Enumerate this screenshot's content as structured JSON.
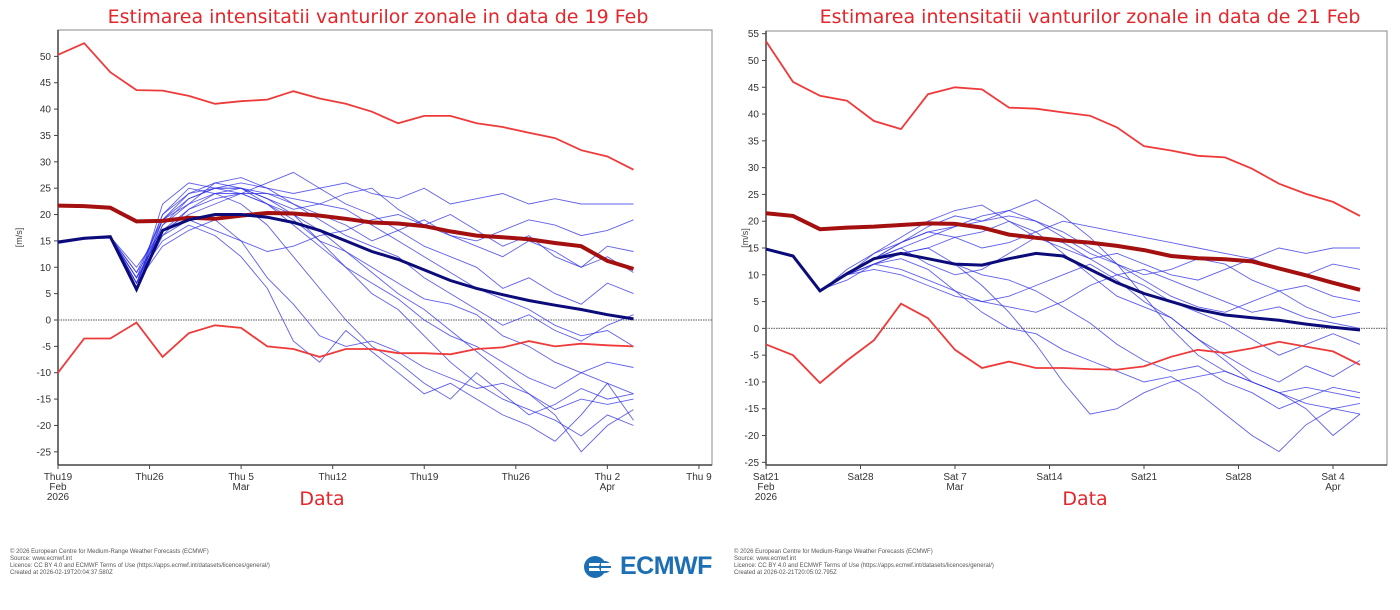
{
  "chart_data": [
    {
      "type": "line",
      "title": "Estimarea intensitatii vanturilor zonale in data de 19 Feb",
      "xlabel": "Data",
      "ylabel": "[m/s]",
      "ylim": [
        -27.5,
        55
      ],
      "xlim": [
        "2026-02-19",
        "2026-04-10"
      ],
      "yticks": [
        -25,
        -20,
        -15,
        -10,
        -5,
        0,
        5,
        10,
        15,
        20,
        25,
        30,
        35,
        40,
        45,
        50
      ],
      "xticks": [
        {
          "date": "2026-02-19",
          "label": [
            "Thu19",
            "Feb",
            "2026"
          ]
        },
        {
          "date": "2026-02-26",
          "label": [
            "Thu26"
          ]
        },
        {
          "date": "2026-03-05",
          "label": [
            "Thu 5",
            "Mar"
          ]
        },
        {
          "date": "2026-03-12",
          "label": [
            "Thu12"
          ]
        },
        {
          "date": "2026-03-19",
          "label": [
            "Thu19"
          ]
        },
        {
          "date": "2026-03-26",
          "label": [
            "Thu26"
          ]
        },
        {
          "date": "2026-04-02",
          "label": [
            "Thu 2",
            "Apr"
          ]
        },
        {
          "date": "2026-04-09",
          "label": [
            "Thu 9"
          ]
        }
      ],
      "zero_line": true,
      "dates": [
        "2026-02-19",
        "2026-02-21",
        "2026-02-23",
        "2026-02-25",
        "2026-02-27",
        "2026-03-01",
        "2026-03-03",
        "2026-03-05",
        "2026-03-07",
        "2026-03-09",
        "2026-03-11",
        "2026-03-13",
        "2026-03-15",
        "2026-03-17",
        "2026-03-19",
        "2026-03-21",
        "2026-03-23",
        "2026-03-25",
        "2026-03-27",
        "2026-03-29",
        "2026-03-31",
        "2026-04-02",
        "2026-04-04"
      ],
      "colors": {
        "members": "#2b2be6",
        "mean": "#0b0b7a",
        "climate_mean": "#a3100f",
        "extremes": "#ef3a3a",
        "zero": "#777777"
      },
      "climate_max": [
        50.3,
        52.5,
        47,
        43.6,
        43.5,
        42.5,
        41,
        41.5,
        41.8,
        43.4,
        42,
        41,
        39.5,
        37.3,
        38.7,
        38.7,
        37.3,
        36.6,
        35.5,
        34.5,
        32.2,
        31,
        28.5
      ],
      "climate_min": [
        -10,
        -3.5,
        -3.5,
        -0.5,
        -7,
        -2.5,
        -1,
        -1.5,
        -5,
        -5.5,
        -7,
        -5.5,
        -5.5,
        -6.3,
        -6.3,
        -6.5,
        -5.5,
        -5.2,
        -4,
        -5,
        -4.5,
        -4.8,
        -5
      ],
      "climate_mean": [
        21.7,
        21.6,
        21.3,
        18.7,
        18.8,
        19.4,
        19.2,
        19.8,
        20.3,
        20.2,
        19.8,
        19.2,
        18.5,
        18.3,
        17.8,
        16.8,
        16,
        15.7,
        15.3,
        14.6,
        14,
        11.2,
        9.7
      ],
      "ensemble_mean": [
        14.8,
        15.5,
        15.8,
        5.8,
        17,
        19,
        20,
        20,
        19.5,
        18.5,
        17,
        15,
        13,
        11.5,
        9.5,
        7.5,
        6,
        4.8,
        3.7,
        2.8,
        2,
        1,
        0.2
      ],
      "members": [
        [
          14.8,
          15.5,
          15.8,
          7,
          18,
          23,
          25,
          26,
          25,
          24,
          25,
          26,
          24,
          23,
          25,
          22,
          23,
          24,
          22,
          23,
          22,
          22,
          22
        ],
        [
          14.8,
          15.5,
          15.8,
          6,
          16,
          21,
          24,
          25,
          23,
          20,
          15,
          10,
          5,
          2,
          -3,
          -8,
          -12,
          -15,
          -17,
          -19,
          -22,
          -18,
          -20
        ],
        [
          14.8,
          15.5,
          15.5,
          8,
          20,
          25,
          24,
          22,
          18,
          12,
          6,
          0,
          -5,
          -8,
          -12,
          -15,
          -10,
          -14,
          -18,
          -16,
          -13,
          -15,
          -14
        ],
        [
          14.5,
          15.3,
          15.6,
          9,
          19,
          22,
          26,
          27,
          25,
          22,
          20,
          18,
          15,
          17,
          14,
          12,
          10,
          6,
          8,
          5,
          3,
          7,
          5
        ],
        [
          14.8,
          15.4,
          15.7,
          7,
          14,
          17,
          19,
          15,
          8,
          3,
          -3,
          -5,
          -4,
          -6,
          -9,
          -11,
          -13,
          -12,
          -14,
          -17,
          -15,
          -16,
          -15
        ],
        [
          14.8,
          15.5,
          15.8,
          10,
          17,
          20,
          22,
          24,
          26,
          28,
          25,
          22,
          20,
          17,
          19,
          16,
          14,
          12,
          15,
          13,
          10,
          12,
          9
        ],
        [
          14.8,
          15.6,
          15.9,
          6,
          22,
          26,
          25,
          24,
          22,
          19,
          15,
          13,
          9,
          5,
          2,
          -2,
          -6,
          -10,
          -14,
          -18,
          -25,
          -20,
          -17
        ],
        [
          14.7,
          15.4,
          15.7,
          8,
          15,
          18,
          16,
          12,
          6,
          -4,
          -8,
          -2,
          -6,
          -10,
          -14,
          -12,
          -15,
          -18,
          -20,
          -23,
          -18,
          -12,
          -19
        ],
        [
          14.8,
          15.5,
          15.8,
          7,
          20,
          24,
          25,
          25,
          23,
          21,
          22,
          24,
          25,
          21,
          18,
          20,
          17,
          14,
          16,
          12,
          10,
          14,
          13
        ],
        [
          14.8,
          15.5,
          15.8,
          7,
          18,
          22,
          24,
          24,
          22,
          20,
          17,
          13,
          10,
          7,
          4,
          3,
          1,
          -3,
          -5,
          -8,
          -10,
          -12,
          -14
        ],
        [
          14.8,
          15.5,
          15.7,
          8,
          17,
          21,
          23,
          24,
          24,
          23,
          22,
          21,
          18,
          15,
          12,
          9,
          6,
          4,
          2,
          -1,
          -3,
          -2,
          -5
        ],
        [
          14.8,
          15.5,
          15.8,
          7,
          19,
          24,
          26,
          25,
          22,
          18,
          14,
          10,
          7,
          4,
          0,
          -3,
          -5,
          -8,
          -11,
          -13,
          -10,
          -8,
          -9
        ],
        [
          14.8,
          15.5,
          15.8,
          9,
          16,
          19,
          17,
          15,
          13,
          14,
          16,
          17,
          19,
          20,
          18,
          16,
          15,
          17,
          19,
          18,
          16,
          17,
          19
        ],
        [
          14.8,
          15.5,
          15.8,
          6,
          19,
          23,
          25,
          25,
          24,
          22,
          19,
          16,
          14,
          12,
          8,
          5,
          2,
          -1,
          1,
          -2,
          -4,
          -1,
          1
        ]
      ]
    },
    {
      "type": "line",
      "title": "Estimarea intensitatii vanturilor zonale in data de 21 Feb",
      "xlabel": "Data",
      "ylabel": "[m/s]",
      "ylim": [
        -25.5,
        55.5
      ],
      "xlim": [
        "2026-02-21",
        "2026-04-08"
      ],
      "yticks": [
        -25,
        -20,
        -15,
        -10,
        -5,
        0,
        5,
        10,
        15,
        20,
        25,
        30,
        35,
        40,
        45,
        50,
        55
      ],
      "xticks": [
        {
          "date": "2026-02-21",
          "label": [
            "Sat21",
            "Feb",
            "2026"
          ]
        },
        {
          "date": "2026-02-28",
          "label": [
            "Sat28"
          ]
        },
        {
          "date": "2026-03-07",
          "label": [
            "Sat 7",
            "Mar"
          ]
        },
        {
          "date": "2026-03-14",
          "label": [
            "Sat14"
          ]
        },
        {
          "date": "2026-03-21",
          "label": [
            "Sat21"
          ]
        },
        {
          "date": "2026-03-28",
          "label": [
            "Sat28"
          ]
        },
        {
          "date": "2026-04-04",
          "label": [
            "Sat 4",
            "Apr"
          ]
        }
      ],
      "zero_line": true,
      "dates": [
        "2026-02-21",
        "2026-02-23",
        "2026-02-25",
        "2026-02-27",
        "2026-03-01",
        "2026-03-03",
        "2026-03-05",
        "2026-03-07",
        "2026-03-09",
        "2026-03-11",
        "2026-03-13",
        "2026-03-15",
        "2026-03-17",
        "2026-03-19",
        "2026-03-21",
        "2026-03-23",
        "2026-03-25",
        "2026-03-27",
        "2026-03-29",
        "2026-03-31",
        "2026-04-02",
        "2026-04-04",
        "2026-04-06"
      ],
      "colors": {
        "members": "#2b2be6",
        "mean": "#0b0b7a",
        "climate_mean": "#a3100f",
        "extremes": "#ef3a3a",
        "zero": "#777777"
      },
      "climate_max": [
        53.6,
        46,
        43.4,
        42.5,
        38.7,
        37.2,
        43.7,
        45,
        44.6,
        41.2,
        41,
        40.3,
        39.7,
        37.5,
        34,
        33.2,
        32.2,
        31.9,
        29.8,
        27,
        25.1,
        23.6,
        21
      ],
      "climate_min": [
        -3,
        -5,
        -10.2,
        -6,
        -2.2,
        4.6,
        1.9,
        -4,
        -7.4,
        -6.2,
        -7.4,
        -7.4,
        -7.6,
        -7.7,
        -7.1,
        -5.3,
        -4,
        -4.6,
        -3.7,
        -2.5,
        -3.4,
        -4.3,
        -6.8
      ],
      "climate_mean": [
        21.5,
        21,
        18.5,
        18.8,
        19,
        19.3,
        19.6,
        19.5,
        18.8,
        17.5,
        16.9,
        16.4,
        16,
        15.4,
        14.6,
        13.5,
        13.1,
        12.9,
        12.5,
        11.2,
        9.9,
        8.5,
        7.2
      ],
      "ensemble_mean": [
        14.8,
        13.5,
        7,
        10.2,
        13,
        14,
        13,
        12,
        11.8,
        13,
        14,
        13.5,
        11,
        8.5,
        6.5,
        5,
        3.5,
        2.5,
        2,
        1.5,
        0.8,
        0.2,
        -0.3
      ],
      "members": [
        [
          14.8,
          13.5,
          7,
          10,
          13,
          16,
          19,
          21,
          20,
          22,
          24,
          21,
          17,
          12,
          6,
          0,
          -5,
          -8,
          -10,
          -12,
          -11,
          -12,
          -13
        ],
        [
          14.8,
          13.5,
          7,
          10,
          12,
          14,
          15,
          12,
          8,
          3,
          -3,
          -10,
          -16,
          -15,
          -12,
          -10,
          -9,
          -8,
          -10,
          -12,
          -14,
          -15,
          -16
        ],
        [
          14.8,
          13.6,
          6.8,
          11,
          14,
          16,
          18,
          17,
          15,
          16,
          18,
          20,
          19,
          18,
          17,
          16,
          15,
          14,
          13,
          15,
          14,
          15,
          15
        ],
        [
          14.7,
          13.4,
          7.2,
          9,
          12,
          11,
          9,
          7,
          5,
          6,
          8,
          10,
          12,
          9,
          5,
          2,
          -2,
          -5,
          -8,
          -10,
          -7,
          -9,
          -6
        ],
        [
          14.8,
          13.5,
          7,
          10,
          13,
          15,
          12,
          10,
          11,
          14,
          17,
          16,
          13,
          10,
          8,
          5,
          3,
          1,
          -2,
          -5,
          -3,
          -1,
          -3
        ],
        [
          14.8,
          13.5,
          7,
          10,
          14,
          17,
          20,
          22,
          23,
          20,
          17,
          15,
          13,
          14,
          12,
          10,
          9,
          11,
          13,
          11,
          10,
          12,
          11
        ],
        [
          14.8,
          13.5,
          7,
          10,
          12,
          13,
          11,
          7,
          3,
          0,
          -1,
          -4,
          -6,
          -8,
          -10,
          -9,
          -12,
          -16,
          -20,
          -23,
          -18,
          -15,
          -14
        ],
        [
          14.8,
          13.5,
          7,
          10,
          13,
          14,
          15,
          17,
          18,
          20,
          18,
          14,
          10,
          6,
          4,
          2,
          -2,
          -6,
          -10,
          -12,
          -15,
          -20,
          -16
        ],
        [
          14.8,
          13.5,
          7,
          10,
          11,
          10,
          8,
          6,
          5,
          4,
          3,
          5,
          8,
          10,
          11,
          9,
          7,
          5,
          3,
          4,
          2,
          1,
          0
        ],
        [
          14.8,
          13.5,
          7,
          10,
          13,
          15,
          17,
          19,
          21,
          22,
          20,
          18,
          15,
          12,
          10,
          11,
          13,
          12,
          9,
          7,
          8,
          6,
          5
        ],
        [
          14.8,
          13.5,
          7,
          10,
          12,
          14,
          13,
          12,
          10,
          9,
          7,
          4,
          1,
          -3,
          -6,
          -8,
          -7,
          -10,
          -12,
          -15,
          -13,
          -11,
          -12
        ],
        [
          14.8,
          13.5,
          7,
          10,
          13,
          16,
          18,
          19,
          20,
          21,
          20,
          17,
          14,
          12,
          9,
          6,
          4,
          3,
          5,
          7,
          4,
          2,
          3
        ]
      ]
    }
  ],
  "footers": [
    {
      "lines": [
        "© 2026 European Centre for Medium-Range Weather Forecasts (ECMWF)",
        "Source: www.ecmwf.int",
        "Licence: CC BY 4.0 and ECMWF Terms of Use (https://apps.ecmwf.int/datasets/licences/general/)",
        "Created at 2026-02-19T20:04:37.580Z"
      ]
    },
    {
      "lines": [
        "© 2026 European Centre for Medium-Range Weather Forecasts (ECMWF)",
        "Source: www.ecmwf.int",
        "Licence: CC BY 4.0 and ECMWF Terms of Use (https://apps.ecmwf.int/datasets/licences/general/)",
        "Created at 2026-02-21T20:05:02.795Z"
      ]
    }
  ],
  "logo": {
    "text": "ECMWF",
    "color": "#1d6fb4"
  }
}
